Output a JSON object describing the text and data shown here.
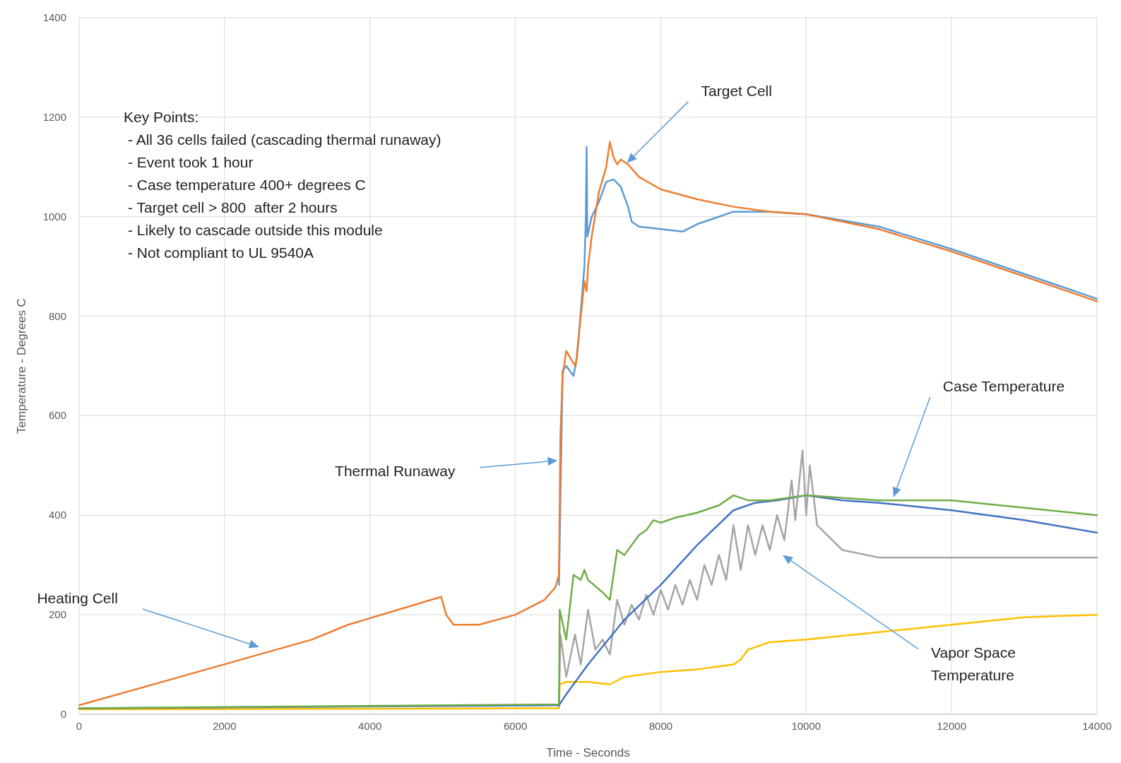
{
  "chart_data": {
    "type": "line",
    "xlabel": "Time - Seconds",
    "ylabel": "Temperature - Degrees C",
    "xlim": [
      0,
      14000
    ],
    "ylim": [
      0,
      1400
    ],
    "xticks": [
      0,
      2000,
      4000,
      6000,
      8000,
      10000,
      12000,
      14000
    ],
    "yticks": [
      0,
      200,
      400,
      600,
      800,
      1000,
      1200,
      1400
    ],
    "grid": true,
    "line_style": "solid",
    "series": [
      {
        "color": "#ffc000",
        "x": [
          0,
          6600,
          6610,
          6700,
          7000,
          7300,
          7500,
          8000,
          8500,
          9000,
          9100,
          9200,
          9500,
          10000,
          11000,
          12000,
          13000,
          14000
        ],
        "values": [
          10,
          12,
          60,
          65,
          65,
          60,
          75,
          85,
          90,
          100,
          110,
          130,
          145,
          150,
          165,
          180,
          195,
          200
        ]
      },
      {
        "color": "#a5a5a5",
        "x": [
          6600,
          6620,
          6700,
          6820,
          6900,
          7000,
          7100,
          7200,
          7300,
          7400,
          7500,
          7600,
          7700,
          7800,
          7900,
          8000,
          8100,
          8200,
          8300,
          8400,
          8500,
          8600,
          8700,
          8800,
          8900,
          9000,
          9100,
          9200,
          9300,
          9400,
          9500,
          9600,
          9700,
          9800,
          9850,
          9950,
          10000,
          10050,
          10150,
          10500,
          11000,
          12000,
          13000,
          14000
        ],
        "values": [
          15,
          160,
          75,
          160,
          100,
          210,
          130,
          150,
          120,
          230,
          180,
          220,
          190,
          240,
          200,
          250,
          210,
          260,
          220,
          270,
          230,
          300,
          260,
          320,
          270,
          380,
          290,
          380,
          320,
          380,
          330,
          400,
          350,
          470,
          390,
          530,
          400,
          500,
          380,
          330,
          315,
          315,
          315,
          315
        ]
      },
      {
        "color": "#4472c4",
        "x": [
          0,
          6600,
          6700,
          7000,
          7500,
          8000,
          8500,
          9000,
          9300,
          9600,
          10000,
          10500,
          11000,
          12000,
          13000,
          14000
        ],
        "values": [
          12,
          18,
          40,
          100,
          190,
          260,
          340,
          410,
          425,
          430,
          440,
          430,
          425,
          410,
          390,
          365
        ]
      },
      {
        "color": "#70ad47",
        "x": [
          0,
          6600,
          6610,
          6700,
          6800,
          6900,
          6950,
          7000,
          7200,
          7300,
          7400,
          7500,
          7700,
          7800,
          7900,
          8000,
          8200,
          8500,
          8800,
          9000,
          9200,
          9500,
          10000,
          10500,
          11000,
          12000,
          13000,
          14000
        ],
        "values": [
          12,
          20,
          210,
          150,
          280,
          270,
          290,
          270,
          245,
          230,
          330,
          320,
          360,
          370,
          390,
          385,
          395,
          405,
          420,
          440,
          430,
          430,
          440,
          435,
          430,
          430,
          415,
          400
        ]
      },
      {
        "color": "#5b9bd5",
        "x": [
          6600,
          6650,
          6700,
          6750,
          6800,
          6850,
          6950,
          6970,
          6980,
          6990,
          7050,
          7150,
          7250,
          7350,
          7450,
          7550,
          7600,
          7700,
          8000,
          8300,
          8500,
          8800,
          9000,
          9500,
          10000,
          11000,
          12000,
          13000,
          14000
        ],
        "values": [
          260,
          690,
          700,
          690,
          680,
          720,
          900,
          1000,
          1140,
          960,
          1000,
          1030,
          1070,
          1075,
          1060,
          1020,
          990,
          980,
          975,
          970,
          985,
          1000,
          1010,
          1010,
          1005,
          980,
          935,
          885,
          835
        ]
      },
      {
        "color": "#ed7d31",
        "x": [
          0,
          3200,
          3700,
          4980,
          5050,
          5150,
          5500,
          6000,
          6400,
          6550,
          6600,
          6620,
          6650,
          6700,
          6780,
          6830,
          6900,
          6950,
          6980,
          7000,
          7050,
          7150,
          7250,
          7300,
          7350,
          7400,
          7450,
          7500,
          7550,
          7700,
          8000,
          8500,
          9000,
          9500,
          10000,
          11000,
          12000,
          13000,
          14000
        ],
        "values": [
          18,
          150,
          180,
          236,
          200,
          180,
          180,
          200,
          230,
          255,
          280,
          560,
          680,
          730,
          710,
          700,
          800,
          870,
          850,
          900,
          960,
          1050,
          1100,
          1150,
          1120,
          1105,
          1115,
          1110,
          1105,
          1080,
          1055,
          1035,
          1020,
          1010,
          1005,
          975,
          930,
          880,
          830
        ]
      }
    ],
    "annotations": [
      "Key Points:\n- All 36 cells failed (cascading thermal runaway)\n- Event took 1 hour\n- Case temperature 400+ degrees C\n- Target cell > 800  after 2 hours\n- Likely to cascade outside this module\n- Not compliant to UL 9540A",
      "Target Cell",
      "Thermal Runaway",
      "Heating Cell",
      "Case Temperature",
      "Vapor Space\nTemperature"
    ]
  }
}
